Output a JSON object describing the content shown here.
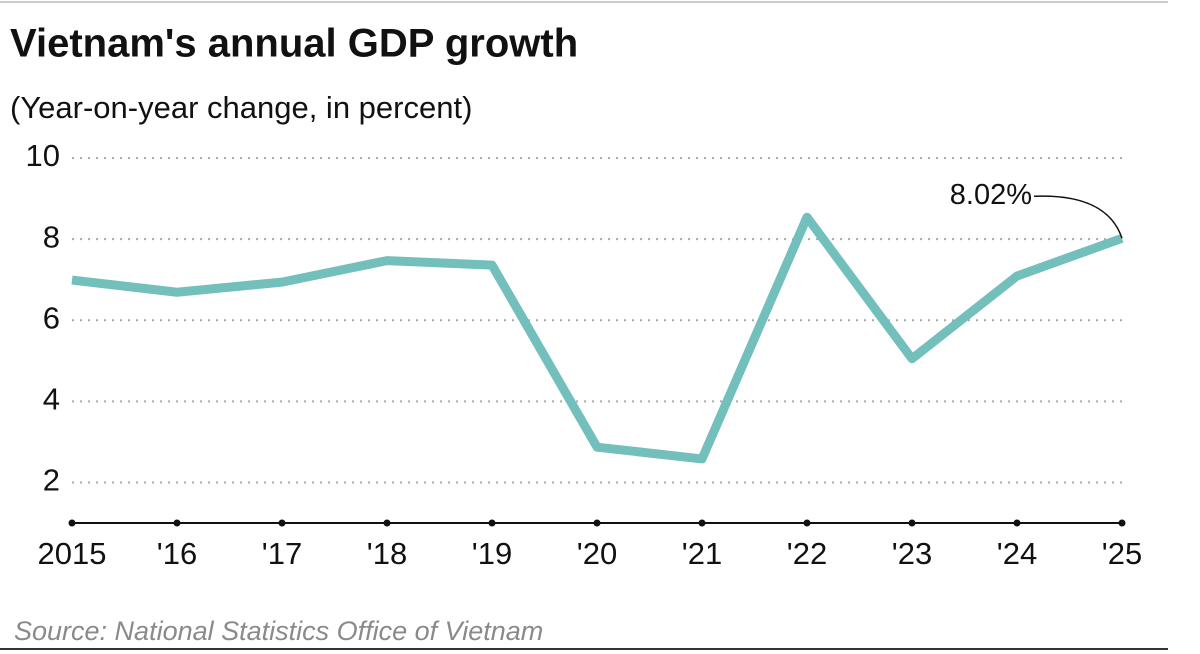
{
  "chart_data": {
    "type": "line",
    "title": "Vietnam's annual GDP growth",
    "subtitle": "(Year-on-year change, in percent)",
    "source": "Source: National Statistics Office of Vietnam",
    "categories": [
      "2015",
      "'16",
      "'17",
      "'18",
      "'19",
      "'20",
      "'21",
      "'22",
      "'23",
      "'24",
      "'25"
    ],
    "values": [
      6.99,
      6.69,
      6.94,
      7.47,
      7.36,
      2.87,
      2.58,
      8.54,
      5.05,
      7.09,
      8.02
    ],
    "value_labels": [
      null,
      null,
      null,
      null,
      null,
      null,
      null,
      null,
      null,
      null,
      "8.02%"
    ],
    "color": "#72bfbb",
    "ylim": [
      1,
      10
    ],
    "yticks": [
      2,
      4,
      6,
      8,
      10
    ],
    "grid": true
  }
}
